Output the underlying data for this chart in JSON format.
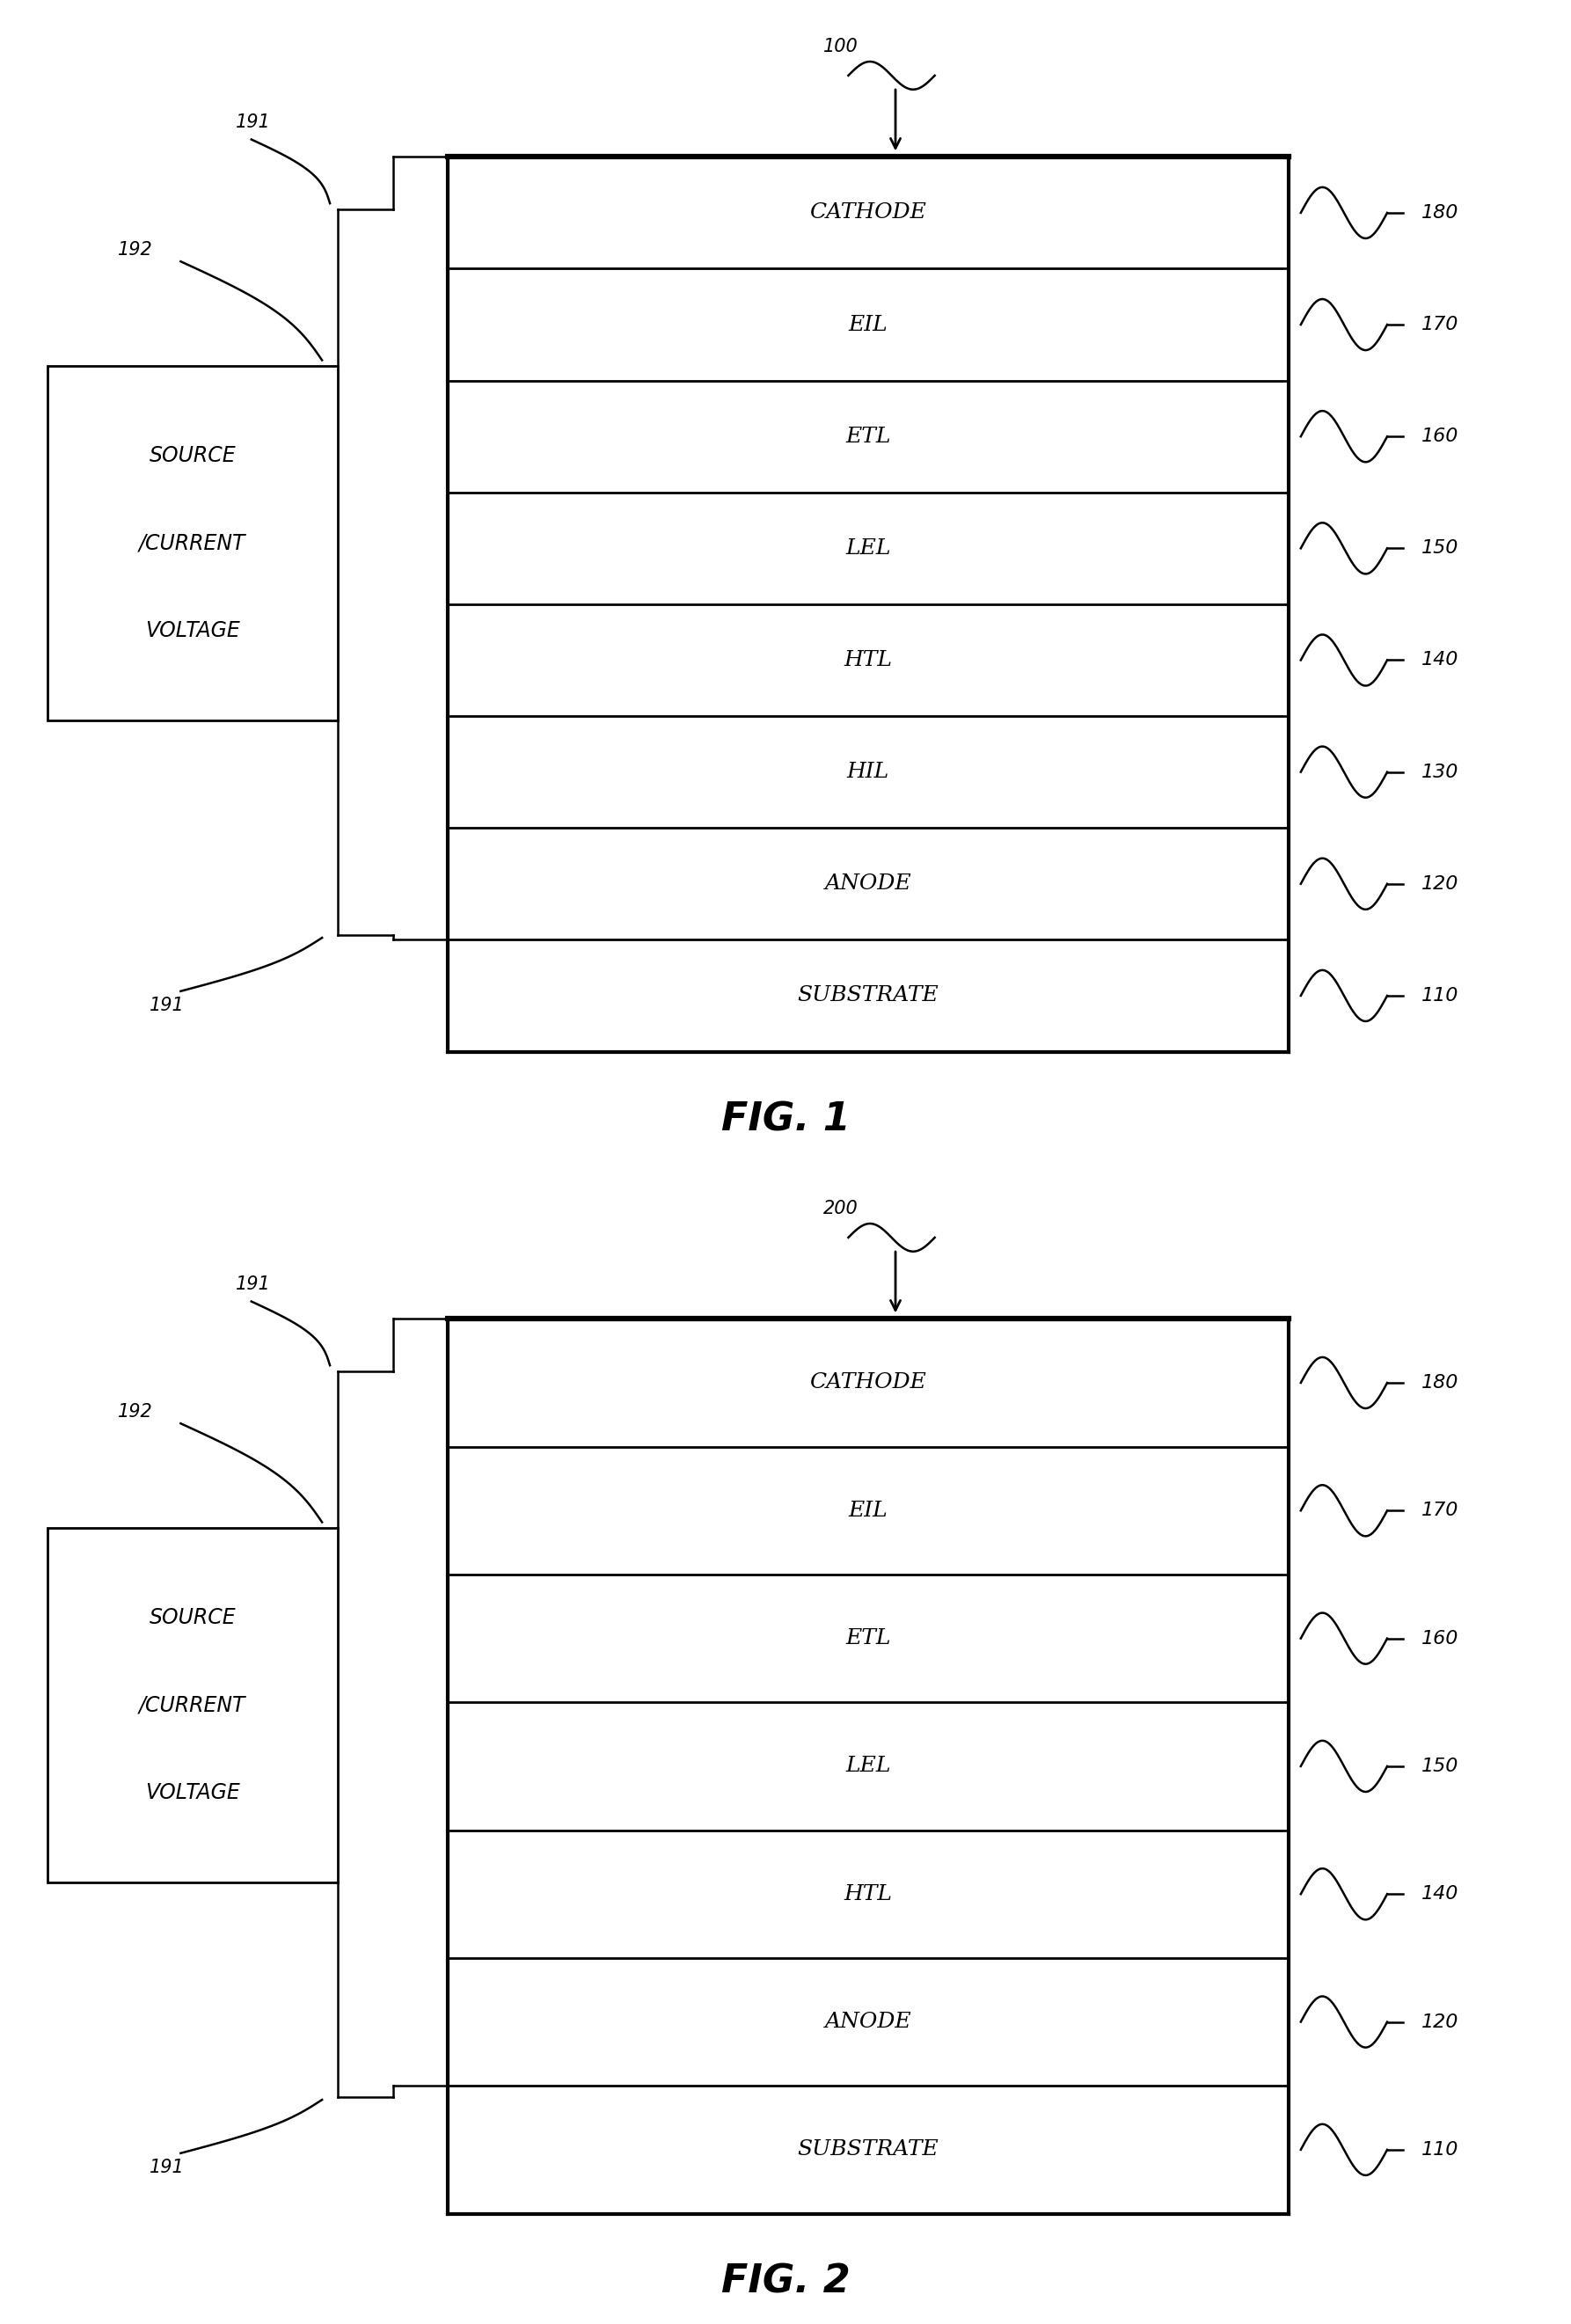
{
  "fig1": {
    "label": "100",
    "layers": [
      {
        "label": "CATHODE",
        "ref": "180"
      },
      {
        "label": "EIL",
        "ref": "170"
      },
      {
        "label": "ETL",
        "ref": "160"
      },
      {
        "label": "LEL",
        "ref": "150"
      },
      {
        "label": "HTL",
        "ref": "140"
      },
      {
        "label": "HIL",
        "ref": "130"
      },
      {
        "label": "ANODE",
        "ref": "120"
      },
      {
        "label": "SUBSTRATE",
        "ref": "110"
      }
    ],
    "anode_label": "ANODE",
    "caption": "FIG. 1"
  },
  "fig2": {
    "label": "200",
    "layers": [
      {
        "label": "CATHODE",
        "ref": "180"
      },
      {
        "label": "EIL",
        "ref": "170"
      },
      {
        "label": "ETL",
        "ref": "160"
      },
      {
        "label": "LEL",
        "ref": "150"
      },
      {
        "label": "HTL",
        "ref": "140"
      },
      {
        "label": "ANODE",
        "ref": "120"
      },
      {
        "label": "SUBSTRATE",
        "ref": "110"
      }
    ],
    "anode_label": "ANODE",
    "caption": "FIG. 2"
  },
  "voltage_box_text": [
    "VOLTAGE",
    "/CURRENT",
    "SOURCE"
  ],
  "wire_label": "191",
  "box_ref_label": "192",
  "bg_color": "#ffffff",
  "line_color": "#000000",
  "lw_border": 3.0,
  "lw_divider": 2.0,
  "lw_wire": 1.8,
  "fs_layer": 18,
  "fs_ref": 16,
  "fs_caption": 32,
  "fs_annot": 15,
  "fs_vs": 17
}
